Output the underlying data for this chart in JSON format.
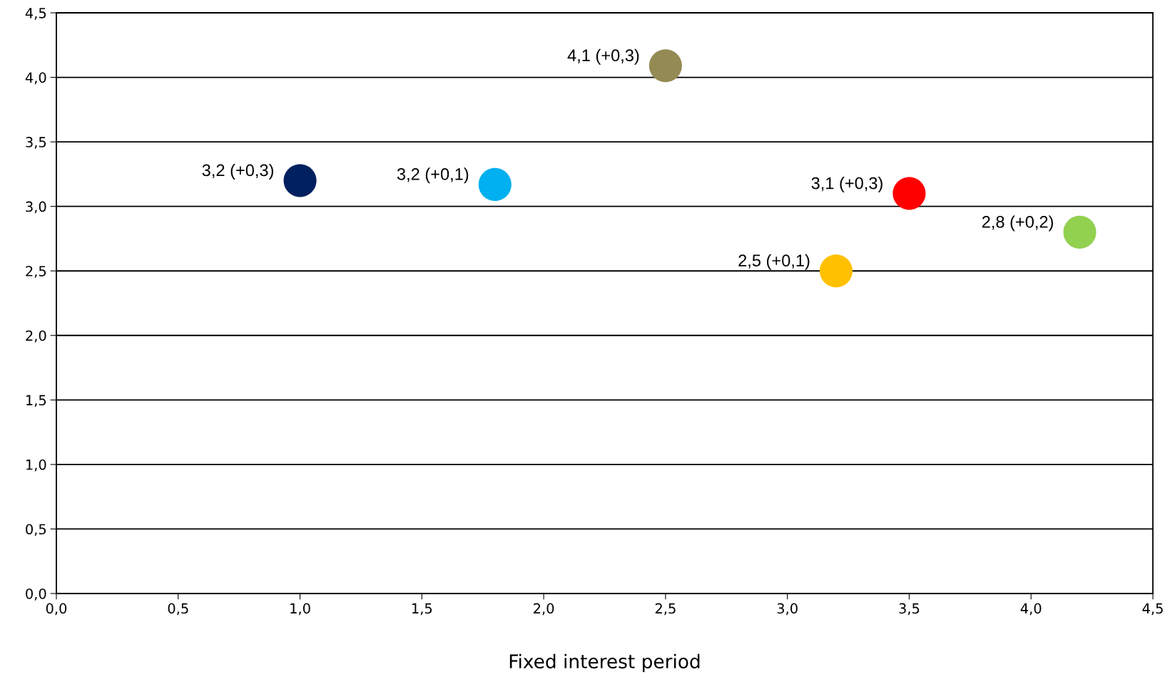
{
  "chart_data": {
    "type": "scatter",
    "xlabel": "Fixed interest period",
    "x": [
      1.0,
      1.8,
      2.5,
      3.2,
      3.5,
      4.2
    ],
    "values": [
      3.2,
      3.17,
      4.09,
      2.5,
      3.1,
      2.8
    ],
    "colors": [
      "#002060",
      "#00b0f0",
      "#948a54",
      "#ffc000",
      "#ff0000",
      "#92d050"
    ],
    "value_labels": [
      "3,2 (+0,3)",
      "3,2 (+0,1)",
      "4,1 (+0,3)",
      "2,5 (+0,1)",
      "3,1 (+0,3)",
      "2,8 (+0,2)"
    ],
    "marker": "circle",
    "grid": "y",
    "legend": false,
    "xlim": [
      0,
      4.5
    ],
    "ylim": [
      0,
      4.5
    ],
    "xticks": [
      {
        "value": 0,
        "label": "0,0"
      },
      {
        "value": 0.5,
        "label": "0,5"
      },
      {
        "value": 1,
        "label": "1,0"
      },
      {
        "value": 1.5,
        "label": "1,5"
      },
      {
        "value": 2,
        "label": "2,0"
      },
      {
        "value": 2.5,
        "label": "2,5"
      },
      {
        "value": 3,
        "label": "3,0"
      },
      {
        "value": 3.5,
        "label": "3,5"
      },
      {
        "value": 4,
        "label": "4,0"
      },
      {
        "value": 4.5,
        "label": "4,5"
      }
    ],
    "yticks": [
      {
        "value": 0,
        "label": "0,0"
      },
      {
        "value": 0.5,
        "label": "0,5"
      },
      {
        "value": 1,
        "label": "1,0"
      },
      {
        "value": 1.5,
        "label": "1,5"
      },
      {
        "value": 2,
        "label": "2,0"
      },
      {
        "value": 2.5,
        "label": "2,5"
      },
      {
        "value": 3,
        "label": "3,0"
      },
      {
        "value": 3.5,
        "label": "3,5"
      },
      {
        "value": 4,
        "label": "4,0"
      },
      {
        "value": 4.5,
        "label": "4,5"
      }
    ]
  }
}
